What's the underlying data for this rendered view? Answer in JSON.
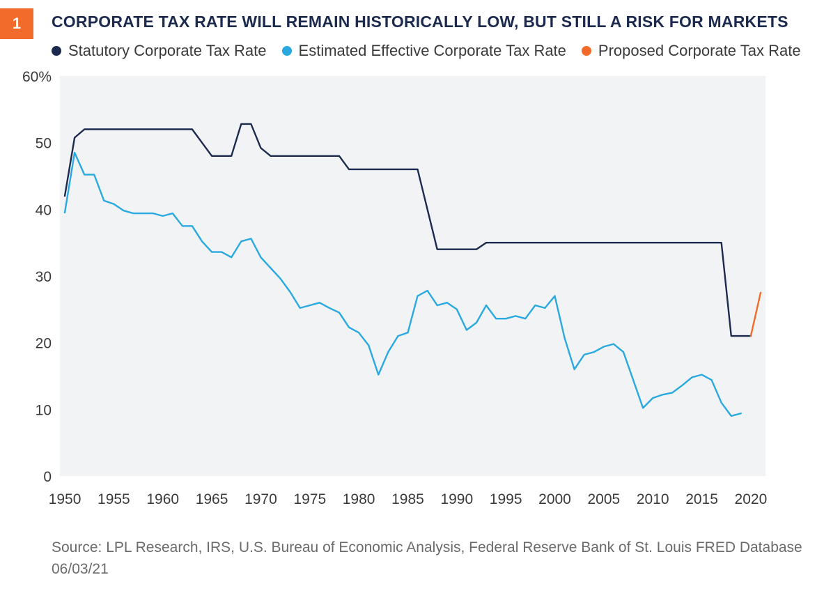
{
  "badge": "1",
  "title": "CORPORATE TAX RATE WILL REMAIN HISTORICALLY LOW, BUT STILL A RISK FOR MARKETS",
  "source": "Source: LPL Research, IRS, U.S. Bureau of Economic Analysis, Federal Reserve Bank of St. Louis FRED Database 06/03/21",
  "colors": {
    "statutory": "#1b2a4e",
    "effective": "#29a9e0",
    "proposed": "#f26b2a",
    "plot_bg": "#f2f3f5",
    "badge": "#f26b2a"
  },
  "chart_data": {
    "type": "line",
    "title": "CORPORATE TAX RATE WILL REMAIN HISTORICALLY LOW, BUT STILL A RISK FOR MARKETS",
    "xlabel": "",
    "ylabel": "",
    "xlim": [
      1949.5,
      2021.5
    ],
    "ylim": [
      0,
      60
    ],
    "grid": false,
    "legend": "top",
    "x_ticks": [
      1950,
      1955,
      1960,
      1965,
      1970,
      1975,
      1980,
      1985,
      1990,
      1995,
      2000,
      2005,
      2010,
      2015,
      2020
    ],
    "y_ticks": [
      {
        "value": 0,
        "label": "0"
      },
      {
        "value": 10,
        "label": "10"
      },
      {
        "value": 20,
        "label": "20"
      },
      {
        "value": 30,
        "label": "30"
      },
      {
        "value": 40,
        "label": "40"
      },
      {
        "value": 50,
        "label": "50"
      },
      {
        "value": 60,
        "label": "60%"
      }
    ],
    "series": [
      {
        "name": "Statutory Corporate Tax Rate",
        "color": "#1b2a4e",
        "points": [
          [
            1950,
            42
          ],
          [
            1951,
            50.75
          ],
          [
            1952,
            52
          ],
          [
            1963,
            52
          ],
          [
            1964,
            50
          ],
          [
            1965,
            48
          ],
          [
            1967,
            48
          ],
          [
            1968,
            52.8
          ],
          [
            1969,
            52.8
          ],
          [
            1970,
            49.2
          ],
          [
            1971,
            48
          ],
          [
            1978,
            48
          ],
          [
            1979,
            46
          ],
          [
            1986,
            46
          ],
          [
            1987,
            40
          ],
          [
            1988,
            34
          ],
          [
            1992,
            34
          ],
          [
            1993,
            35
          ],
          [
            2017,
            35
          ],
          [
            2018,
            21
          ],
          [
            2020,
            21
          ]
        ]
      },
      {
        "name": "Estimated Effective Corporate Tax Rate",
        "color": "#29a9e0",
        "points": [
          [
            1950,
            39.5
          ],
          [
            1951,
            48.5
          ],
          [
            1952,
            45.2
          ],
          [
            1953,
            45.2
          ],
          [
            1954,
            41.3
          ],
          [
            1955,
            40.8
          ],
          [
            1956,
            39.8
          ],
          [
            1957,
            39.4
          ],
          [
            1958,
            39.4
          ],
          [
            1959,
            39.4
          ],
          [
            1960,
            39
          ],
          [
            1961,
            39.4
          ],
          [
            1962,
            37.5
          ],
          [
            1963,
            37.5
          ],
          [
            1964,
            35.2
          ],
          [
            1965,
            33.6
          ],
          [
            1966,
            33.6
          ],
          [
            1967,
            32.8
          ],
          [
            1968,
            35.2
          ],
          [
            1969,
            35.6
          ],
          [
            1970,
            32.8
          ],
          [
            1971,
            31.2
          ],
          [
            1972,
            29.6
          ],
          [
            1973,
            27.6
          ],
          [
            1974,
            25.2
          ],
          [
            1975,
            25.6
          ],
          [
            1976,
            26
          ],
          [
            1977,
            25.2
          ],
          [
            1978,
            24.5
          ],
          [
            1979,
            22.3
          ],
          [
            1980,
            21.5
          ],
          [
            1981,
            19.6
          ],
          [
            1982,
            15.2
          ],
          [
            1983,
            18.6
          ],
          [
            1984,
            21
          ],
          [
            1985,
            21.5
          ],
          [
            1986,
            27
          ],
          [
            1987,
            27.8
          ],
          [
            1988,
            25.6
          ],
          [
            1989,
            26
          ],
          [
            1990,
            25
          ],
          [
            1991,
            21.9
          ],
          [
            1992,
            23
          ],
          [
            1993,
            25.6
          ],
          [
            1994,
            23.6
          ],
          [
            1995,
            23.6
          ],
          [
            1996,
            24
          ],
          [
            1997,
            23.6
          ],
          [
            1998,
            25.6
          ],
          [
            1999,
            25.2
          ],
          [
            2000,
            27
          ],
          [
            2001,
            20.7
          ],
          [
            2002,
            16
          ],
          [
            2003,
            18.2
          ],
          [
            2004,
            18.6
          ],
          [
            2005,
            19.4
          ],
          [
            2006,
            19.8
          ],
          [
            2007,
            18.6
          ],
          [
            2008,
            14.4
          ],
          [
            2009,
            10.2
          ],
          [
            2010,
            11.7
          ],
          [
            2011,
            12.2
          ],
          [
            2012,
            12.5
          ],
          [
            2013,
            13.6
          ],
          [
            2014,
            14.8
          ],
          [
            2015,
            15.2
          ],
          [
            2016,
            14.4
          ],
          [
            2017,
            11
          ],
          [
            2018,
            9
          ],
          [
            2019,
            9.4
          ]
        ]
      },
      {
        "name": "Proposed Corporate Tax Rate",
        "color": "#f26b2a",
        "points": [
          [
            2020,
            21
          ],
          [
            2021,
            27.5
          ]
        ]
      }
    ]
  }
}
